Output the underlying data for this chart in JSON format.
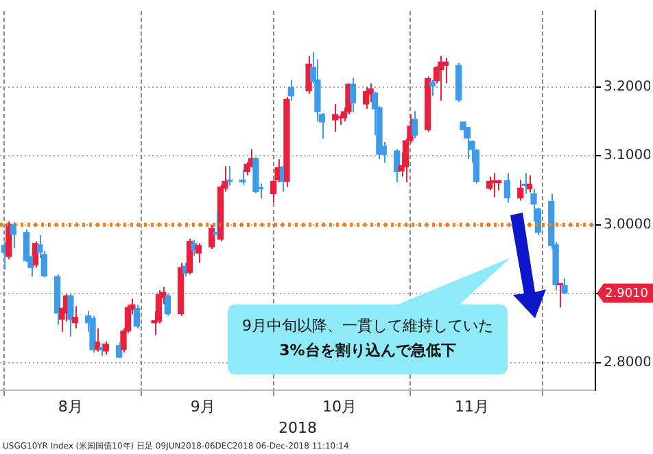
{
  "chart_data": {
    "type": "candlestick",
    "xlabel": "2018",
    "x": [
      "2018-08-01",
      "2018-08-02",
      "2018-08-03",
      "2018-08-06",
      "2018-08-07",
      "2018-08-08",
      "2018-08-09",
      "2018-08-10",
      "2018-08-13",
      "2018-08-14",
      "2018-08-15",
      "2018-08-16",
      "2018-08-17",
      "2018-08-20",
      "2018-08-21",
      "2018-08-22",
      "2018-08-23",
      "2018-08-24",
      "2018-08-27",
      "2018-08-28",
      "2018-08-29",
      "2018-08-30",
      "2018-08-31",
      "2018-09-04",
      "2018-09-05",
      "2018-09-06",
      "2018-09-07",
      "2018-09-10",
      "2018-09-11",
      "2018-09-12",
      "2018-09-13",
      "2018-09-14",
      "2018-09-17",
      "2018-09-18",
      "2018-09-19",
      "2018-09-20",
      "2018-09-21",
      "2018-09-24",
      "2018-09-25",
      "2018-09-26",
      "2018-09-27",
      "2018-09-28",
      "2018-10-01",
      "2018-10-02",
      "2018-10-03",
      "2018-10-04",
      "2018-10-05",
      "2018-10-09",
      "2018-10-10",
      "2018-10-11",
      "2018-10-12",
      "2018-10-15",
      "2018-10-16",
      "2018-10-17",
      "2018-10-18",
      "2018-10-19",
      "2018-10-22",
      "2018-10-23",
      "2018-10-24",
      "2018-10-25",
      "2018-10-26",
      "2018-10-29",
      "2018-10-30",
      "2018-10-31",
      "2018-11-01",
      "2018-11-02",
      "2018-11-05",
      "2018-11-06",
      "2018-11-07",
      "2018-11-08",
      "2018-11-09",
      "2018-11-12",
      "2018-11-13",
      "2018-11-14",
      "2018-11-15",
      "2018-11-16",
      "2018-11-19",
      "2018-11-20",
      "2018-11-21",
      "2018-11-23",
      "2018-11-26",
      "2018-11-27",
      "2018-11-28",
      "2018-11-29",
      "2018-11-30",
      "2018-12-03",
      "2018-12-04",
      "2018-12-05",
      "2018-12-06"
    ],
    "ohlc": [
      [
        2.97,
        2.975,
        2.935,
        2.96
      ],
      [
        2.954,
        3.005,
        2.95,
        3.001
      ],
      [
        3.0,
        3.004,
        2.966,
        2.986
      ],
      [
        2.989,
        2.993,
        2.946,
        2.948
      ],
      [
        2.954,
        2.956,
        2.925,
        2.938
      ],
      [
        2.942,
        2.976,
        2.938,
        2.973
      ],
      [
        2.971,
        2.985,
        2.952,
        2.96
      ],
      [
        2.957,
        2.962,
        2.924,
        2.926
      ],
      [
        2.925,
        2.928,
        2.855,
        2.872
      ],
      [
        2.863,
        2.88,
        2.845,
        2.879
      ],
      [
        2.872,
        2.9,
        2.86,
        2.897
      ],
      [
        2.897,
        2.9,
        2.838,
        2.863
      ],
      [
        2.858,
        2.882,
        2.85,
        2.866
      ],
      [
        2.868,
        2.875,
        2.845,
        2.858
      ],
      [
        2.864,
        2.868,
        2.815,
        2.819
      ],
      [
        2.819,
        2.85,
        2.816,
        2.83
      ],
      [
        2.822,
        2.828,
        2.81,
        2.819
      ],
      [
        2.817,
        2.831,
        2.812,
        2.827
      ],
      [
        2.825,
        2.83,
        2.807,
        2.808
      ],
      [
        2.819,
        2.85,
        2.815,
        2.846
      ],
      [
        2.846,
        2.884,
        2.843,
        2.88
      ],
      [
        2.877,
        2.893,
        2.87,
        2.884
      ],
      [
        2.879,
        2.884,
        2.85,
        2.853
      ],
      [
        2.858,
        2.875,
        2.84,
        2.861
      ],
      [
        2.86,
        2.905,
        2.857,
        2.899
      ],
      [
        2.894,
        2.91,
        2.885,
        2.902
      ],
      [
        2.897,
        2.9,
        2.868,
        2.871
      ],
      [
        2.871,
        2.945,
        2.868,
        2.938
      ],
      [
        2.94,
        2.945,
        2.925,
        2.93
      ],
      [
        2.931,
        2.98,
        2.928,
        2.976
      ],
      [
        2.973,
        2.978,
        2.955,
        2.964
      ],
      [
        2.959,
        2.973,
        2.945,
        2.97
      ],
      [
        2.968,
        3.0,
        2.965,
        2.995
      ],
      [
        2.989,
        3.018,
        2.984,
        2.986
      ],
      [
        2.979,
        3.058,
        2.976,
        3.055
      ],
      [
        3.053,
        3.085,
        3.048,
        3.063
      ],
      [
        3.065,
        3.085,
        3.057,
        3.063
      ],
      [
        3.065,
        3.08,
        3.058,
        3.062
      ],
      [
        3.077,
        3.091,
        3.072,
        3.088
      ],
      [
        3.085,
        3.11,
        3.083,
        3.096
      ],
      [
        3.096,
        3.098,
        3.046,
        3.048
      ],
      [
        3.053,
        3.06,
        3.038,
        3.052
      ],
      [
        3.045,
        3.065,
        3.032,
        3.063
      ],
      [
        3.065,
        3.095,
        3.062,
        3.083
      ],
      [
        3.084,
        3.086,
        3.048,
        3.063
      ],
      [
        3.063,
        3.185,
        3.055,
        3.182
      ],
      [
        3.199,
        3.21,
        3.18,
        3.187
      ],
      [
        3.194,
        3.245,
        3.19,
        3.233
      ],
      [
        3.228,
        3.25,
        3.205,
        3.208
      ],
      [
        3.21,
        3.24,
        3.15,
        3.164
      ],
      [
        3.16,
        3.162,
        3.125,
        3.149
      ],
      [
        3.152,
        3.175,
        3.135,
        3.16
      ],
      [
        3.155,
        3.16,
        3.145,
        3.157
      ],
      [
        3.155,
        3.17,
        3.15,
        3.164
      ],
      [
        3.164,
        3.205,
        3.16,
        3.204
      ],
      [
        3.204,
        3.213,
        3.163,
        3.177
      ],
      [
        3.175,
        3.2,
        3.168,
        3.193
      ],
      [
        3.189,
        3.205,
        3.178,
        3.197
      ],
      [
        3.191,
        3.193,
        3.13,
        3.168
      ],
      [
        3.17,
        3.172,
        3.095,
        3.102
      ],
      [
        3.114,
        3.12,
        3.09,
        3.102
      ],
      [
        3.107,
        3.11,
        3.062,
        3.077
      ],
      [
        3.078,
        3.105,
        3.07,
        3.086
      ],
      [
        3.084,
        3.125,
        3.062,
        3.122
      ],
      [
        3.122,
        3.16,
        3.118,
        3.143
      ],
      [
        3.153,
        3.165,
        3.125,
        3.13
      ],
      [
        3.138,
        3.215,
        3.135,
        3.212
      ],
      [
        3.207,
        3.21,
        3.187,
        3.201
      ],
      [
        3.209,
        3.23,
        3.205,
        3.228
      ],
      [
        3.225,
        3.245,
        3.18,
        3.236
      ],
      [
        3.231,
        3.242,
        3.205,
        3.236
      ],
      [
        3.231,
        3.235,
        3.178,
        3.181
      ],
      [
        3.149,
        3.15,
        3.125,
        3.138
      ],
      [
        3.141,
        3.142,
        3.095,
        3.126
      ],
      [
        3.121,
        3.122,
        3.09,
        3.109
      ],
      [
        3.108,
        3.11,
        3.06,
        3.063
      ],
      [
        3.053,
        3.07,
        3.05,
        3.063
      ],
      [
        3.061,
        3.075,
        3.04,
        3.064
      ],
      [
        3.061,
        3.065,
        3.05,
        3.064
      ],
      [
        3.064,
        3.075,
        3.032,
        3.039
      ],
      [
        3.039,
        3.065,
        3.035,
        3.053
      ],
      [
        3.059,
        3.075,
        3.045,
        3.057
      ],
      [
        3.052,
        3.072,
        3.047,
        3.059
      ],
      [
        3.045,
        3.052,
        3.005,
        3.03
      ],
      [
        3.023,
        3.025,
        2.985,
        2.989
      ],
      [
        3.034,
        3.045,
        2.965,
        2.97
      ],
      [
        2.971,
        2.975,
        2.905,
        2.913
      ],
      [
        2.913,
        2.915,
        2.88,
        2.914
      ],
      [
        2.912,
        2.922,
        2.9,
        2.901
      ]
    ],
    "colors": [
      "#3d9be9",
      "#e8213f",
      "#3d9be9",
      "#3d9be9",
      "#3d9be9",
      "#e8213f",
      "#3d9be9",
      "#3d9be9",
      "#3d9be9",
      "#e8213f",
      "#e8213f",
      "#3d9be9",
      "#e8213f",
      "#3d9be9",
      "#3d9be9",
      "#e8213f",
      "#3d9be9",
      "#e8213f",
      "#3d9be9",
      "#e8213f",
      "#e8213f",
      "#e8213f",
      "#3d9be9",
      "#e8213f",
      "#e8213f",
      "#e8213f",
      "#3d9be9",
      "#e8213f",
      "#3d9be9",
      "#e8213f",
      "#3d9be9",
      "#e8213f",
      "#e8213f",
      "#3d9be9",
      "#e8213f",
      "#e8213f",
      "#3d9be9",
      "#3d9be9",
      "#e8213f",
      "#e8213f",
      "#3d9be9",
      "#3d9be9",
      "#e8213f",
      "#e8213f",
      "#3d9be9",
      "#e8213f",
      "#3d9be9",
      "#e8213f",
      "#3d9be9",
      "#3d9be9",
      "#3d9be9",
      "#e8213f",
      "#e8213f",
      "#e8213f",
      "#e8213f",
      "#3d9be9",
      "#e8213f",
      "#e8213f",
      "#3d9be9",
      "#3d9be9",
      "#3d9be9",
      "#3d9be9",
      "#e8213f",
      "#e8213f",
      "#e8213f",
      "#3d9be9",
      "#e8213f",
      "#3d9be9",
      "#e8213f",
      "#e8213f",
      "#e8213f",
      "#3d9be9",
      "#3d9be9",
      "#3d9be9",
      "#3d9be9",
      "#3d9be9",
      "#e8213f",
      "#e8213f",
      "#e8213f",
      "#3d9be9",
      "#e8213f",
      "#3d9be9",
      "#e8213f",
      "#3d9be9",
      "#3d9be9",
      "#3d9be9",
      "#3d9be9",
      "#e8213f",
      "#3d9be9"
    ],
    "xlim": [
      "2018-07-31",
      "2018-12-13"
    ],
    "xticks": [
      {
        "value": "2018-08-01",
        "label": null
      },
      {
        "value": "2018-08-16",
        "label": "8月"
      },
      {
        "value": "2018-09-01",
        "label": null
      },
      {
        "value": "2018-09-15",
        "label": "9月"
      },
      {
        "value": "2018-10-01",
        "label": null
      },
      {
        "value": "2018-10-16",
        "label": "10月"
      },
      {
        "value": "2018-11-01",
        "label": null
      },
      {
        "value": "2018-11-15",
        "label": "11月"
      },
      {
        "value": "2018-12-01",
        "label": null
      }
    ],
    "ylim": [
      2.76,
      3.31
    ],
    "yticks": [
      {
        "value": 2.8,
        "label": "2.8000"
      },
      {
        "value": 2.9,
        "label": null
      },
      {
        "value": 3.0,
        "label": "3.0000"
      },
      {
        "value": 3.1,
        "label": "3.1000"
      },
      {
        "value": 3.2,
        "label": "3.2000"
      }
    ],
    "grid": true,
    "ref_lines": [
      {
        "axis": "y",
        "value": 3.0,
        "color": "#f07f1a",
        "line_style": "dotted"
      }
    ],
    "annotations": [
      "2.9010",
      "9月中旬以降、一貫して維持していた",
      "3%台を割り込んで急低下",
      "USGG10YR Index (米国国債10年) 日足 09JUN2018-06DEC2018 06-Dec-2018 11:10:14"
    ]
  }
}
